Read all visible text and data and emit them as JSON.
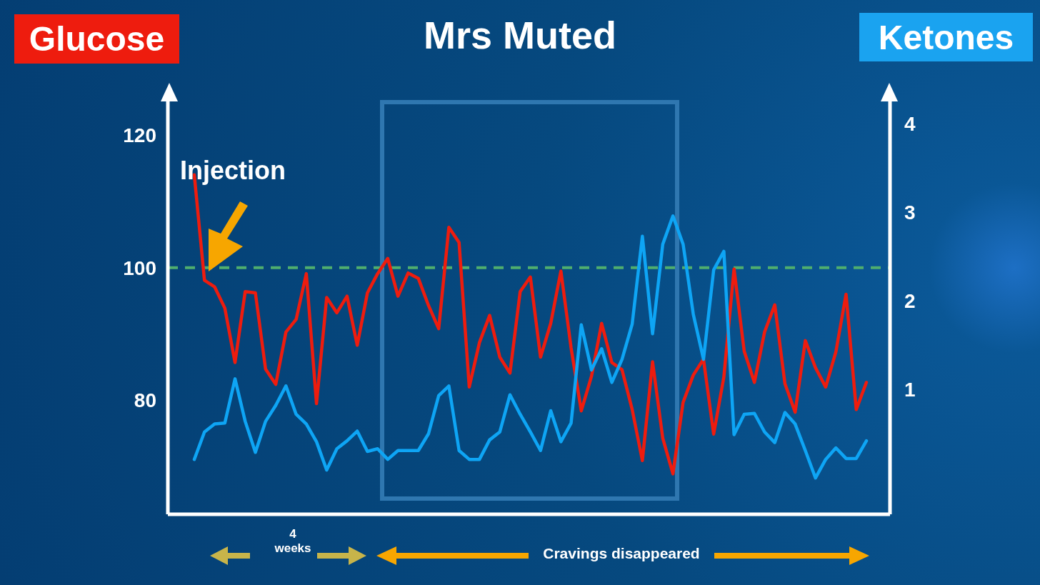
{
  "chart_data": {
    "type": "line",
    "title": "Mrs Muted",
    "ylabel": "Glucose",
    "y2label": "Ketones",
    "annotations": [
      "Injection",
      "4 weeks",
      "Cravings disappeared"
    ],
    "categories": [
      null,
      null,
      null,
      null,
      null,
      null,
      null,
      null,
      null,
      null,
      null,
      null,
      null,
      null,
      null,
      null,
      null,
      null,
      null,
      null,
      null,
      null,
      null,
      null,
      null,
      null,
      null,
      null,
      null,
      null,
      null,
      null,
      null,
      null,
      null,
      null,
      null,
      null,
      null,
      null,
      null,
      null,
      null,
      null,
      null,
      null,
      null,
      null,
      null,
      null,
      null,
      null,
      null,
      null,
      null,
      null,
      null,
      null,
      null,
      null,
      null,
      null,
      null,
      null,
      null,
      null,
      null
    ],
    "series": [
      {
        "color": "#ee1c0e",
        "values": [
          114.0,
          98.1,
          97.1,
          93.9,
          85.7,
          96.4,
          96.2,
          84.7,
          82.4,
          90.3,
          92.2,
          99.1,
          79.5,
          95.5,
          93.2,
          95.7,
          88.3,
          96.2,
          99.1,
          101.4,
          95.7,
          99.2,
          98.4,
          94.3,
          90.8,
          106.1,
          103.8,
          82.0,
          88.7,
          92.8,
          86.5,
          84.1,
          96.4,
          98.6,
          86.5,
          91.6,
          99.5,
          87.9,
          78.4,
          83.6,
          91.6,
          85.7,
          84.6,
          78.6,
          70.9,
          85.8,
          74.3,
          68.9,
          79.7,
          83.8,
          86.2,
          74.9,
          83.5,
          99.8,
          87.4,
          82.7,
          90.3,
          94.4,
          82.5,
          78.2,
          89.0,
          84.9,
          82.0,
          87.3,
          96.0,
          78.6,
          82.7
        ]
      },
      {
        "color": "#0ea5f5",
        "axis": "y2",
        "values": [
          0.21,
          0.52,
          0.61,
          0.62,
          1.12,
          0.64,
          0.29,
          0.64,
          0.82,
          1.04,
          0.72,
          0.61,
          0.41,
          0.09,
          0.33,
          0.42,
          0.53,
          0.3,
          0.33,
          0.21,
          0.31,
          0.31,
          0.31,
          0.5,
          0.93,
          1.04,
          0.31,
          0.21,
          0.21,
          0.43,
          0.52,
          0.94,
          0.72,
          0.52,
          0.31,
          0.76,
          0.41,
          0.62,
          1.73,
          1.22,
          1.46,
          1.08,
          1.34,
          1.74,
          2.73,
          1.63,
          2.64,
          2.96,
          2.64,
          1.85,
          1.34,
          2.35,
          2.56,
          0.49,
          0.72,
          0.73,
          0.52,
          0.4,
          0.74,
          0.61,
          0.31,
          0.0,
          0.21,
          0.34,
          0.22,
          0.22,
          0.42
        ]
      }
    ],
    "ylim": [
      62.8,
      125.3
    ],
    "yticks": [
      80,
      100,
      120
    ],
    "y2lim": [
      -0.41,
      4.27
    ],
    "y2ticks": [
      1,
      2,
      3,
      4
    ],
    "ref_lines": [
      {
        "axis": "y",
        "value": 100,
        "color": "#4fae6e",
        "line_style": "dashed"
      }
    ],
    "grid": false
  }
}
